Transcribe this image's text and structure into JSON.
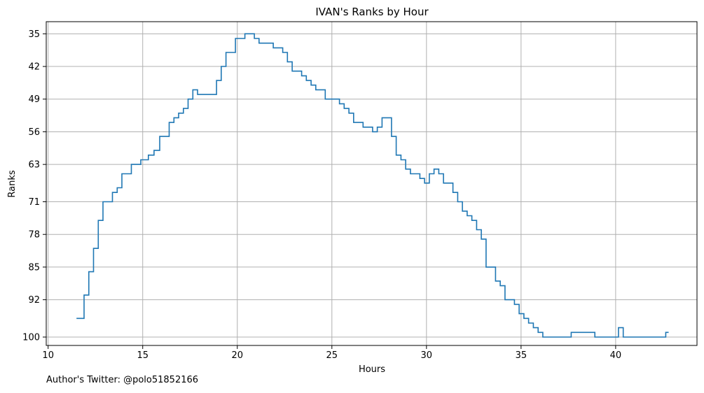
{
  "chart_data": {
    "type": "line",
    "step": "post",
    "title": "IVAN's Ranks by Hour",
    "xlabel": "Hours",
    "ylabel": "Ranks",
    "xlim": [
      9.9,
      44.3
    ],
    "ylim": [
      101.8,
      32.4
    ],
    "y_inverted": true,
    "grid": true,
    "xticks": [
      10,
      15,
      20,
      25,
      30,
      35,
      40
    ],
    "yticks": [
      35,
      42,
      49,
      56,
      63,
      71,
      78,
      85,
      92,
      100
    ],
    "series": [
      {
        "color": "#1f77b4",
        "x": [
          11.5,
          11.9,
          12.15,
          12.4,
          12.65,
          12.9,
          13.4,
          13.65,
          13.9,
          14.4,
          14.9,
          15.3,
          15.6,
          15.9,
          16.4,
          16.65,
          16.9,
          17.15,
          17.4,
          17.65,
          17.9,
          18.9,
          19.15,
          19.4,
          19.9,
          20.4,
          20.9,
          21.15,
          21.9,
          22.4,
          22.65,
          22.9,
          23.4,
          23.65,
          23.9,
          24.15,
          24.65,
          25.4,
          25.65,
          25.9,
          26.15,
          26.65,
          27.15,
          27.4,
          27.65,
          28.15,
          28.4,
          28.65,
          28.9,
          29.15,
          29.65,
          29.9,
          30.15,
          30.4,
          30.65,
          30.9,
          31.4,
          31.65,
          31.9,
          32.15,
          32.4,
          32.65,
          32.9,
          33.15,
          33.65,
          33.9,
          34.15,
          34.65,
          34.9,
          35.15,
          35.4,
          35.65,
          35.9,
          36.15,
          36.65,
          37.65,
          38.9,
          40.15,
          40.4,
          42.65,
          42.8
        ],
        "y": [
          96,
          91,
          86,
          81,
          75,
          71,
          69,
          68,
          65,
          63,
          62,
          61,
          60,
          57,
          54,
          53,
          52,
          51,
          49,
          47,
          48,
          45,
          42,
          39,
          36,
          35,
          36,
          37,
          38,
          39,
          41,
          43,
          44,
          45,
          46,
          47,
          49,
          50,
          51,
          52,
          54,
          55,
          56,
          55,
          53,
          57,
          61,
          62,
          64,
          65,
          66,
          67,
          65,
          64,
          65,
          67,
          69,
          71,
          73,
          74,
          75,
          77,
          79,
          85,
          88,
          89,
          92,
          93,
          95,
          96,
          97,
          98,
          99,
          100,
          100,
          99,
          100,
          98,
          100,
          99,
          99
        ]
      }
    ]
  },
  "footer": {
    "note": "Author's Twitter: @polo51852166"
  }
}
